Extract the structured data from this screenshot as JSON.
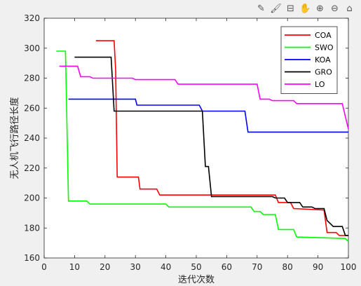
{
  "toolbar": {
    "icons": [
      "brush-export-icon",
      "data-tip-icon",
      "data-cursor-icon",
      "pan-hand-icon",
      "zoom-in-icon",
      "zoom-out-icon",
      "home-icon"
    ]
  },
  "chart_data": {
    "type": "line",
    "title": "",
    "xlabel": "迭代次数",
    "ylabel": "无人机飞行路径长度",
    "xlim": [
      0,
      100
    ],
    "ylim": [
      160,
      320
    ],
    "xticks": [
      0,
      10,
      20,
      30,
      40,
      50,
      60,
      70,
      80,
      90,
      100
    ],
    "yticks": [
      160,
      180,
      200,
      220,
      240,
      260,
      280,
      300,
      320
    ],
    "grid": false,
    "legend_position": "top-right",
    "series": [
      {
        "name": "COA",
        "color": "#ff0000",
        "points": [
          [
            17,
            305
          ],
          [
            23,
            305
          ],
          [
            23.5,
            285
          ],
          [
            24,
            214
          ],
          [
            31,
            214
          ],
          [
            31.5,
            206
          ],
          [
            37,
            206
          ],
          [
            38,
            202
          ],
          [
            76,
            202
          ],
          [
            77,
            197
          ],
          [
            81,
            197
          ],
          [
            82,
            193
          ],
          [
            92,
            192
          ],
          [
            93,
            177
          ],
          [
            96,
            177
          ],
          [
            97,
            175
          ],
          [
            100,
            175
          ]
        ]
      },
      {
        "name": "SWO",
        "color": "#00ff00",
        "points": [
          [
            4,
            298
          ],
          [
            7,
            298
          ],
          [
            8,
            198
          ],
          [
            14,
            198
          ],
          [
            15,
            196
          ],
          [
            40,
            196
          ],
          [
            41,
            194
          ],
          [
            68,
            194
          ],
          [
            69,
            191
          ],
          [
            71,
            191
          ],
          [
            72,
            189
          ],
          [
            76,
            189
          ],
          [
            77,
            179
          ],
          [
            82,
            179
          ],
          [
            83,
            174
          ],
          [
            99,
            173
          ],
          [
            100,
            171
          ]
        ]
      },
      {
        "name": "KOA",
        "color": "#0000ff",
        "points": [
          [
            8,
            266
          ],
          [
            30,
            266
          ],
          [
            30.5,
            262
          ],
          [
            51,
            262
          ],
          [
            52,
            258
          ],
          [
            66,
            258
          ],
          [
            67,
            244
          ],
          [
            100,
            244
          ]
        ]
      },
      {
        "name": "GRO",
        "color": "#000000",
        "points": [
          [
            10,
            294
          ],
          [
            22,
            294
          ],
          [
            23,
            258
          ],
          [
            52,
            258
          ],
          [
            53,
            221
          ],
          [
            54,
            221
          ],
          [
            55,
            201
          ],
          [
            75,
            201
          ],
          [
            76,
            200
          ],
          [
            79,
            200
          ],
          [
            80,
            197
          ],
          [
            84,
            197
          ],
          [
            85,
            194
          ],
          [
            88,
            194
          ],
          [
            89,
            193
          ],
          [
            92,
            193
          ],
          [
            93,
            185
          ],
          [
            94,
            183
          ],
          [
            95,
            181
          ],
          [
            98,
            181
          ],
          [
            99,
            175
          ],
          [
            100,
            175
          ]
        ]
      },
      {
        "name": "LO",
        "color": "#ff00ff",
        "points": [
          [
            5,
            288
          ],
          [
            11,
            288
          ],
          [
            12,
            281
          ],
          [
            15,
            281
          ],
          [
            16,
            280
          ],
          [
            29,
            280
          ],
          [
            30,
            279
          ],
          [
            43,
            279
          ],
          [
            44,
            276
          ],
          [
            70,
            276
          ],
          [
            71,
            266
          ],
          [
            74,
            266
          ],
          [
            75,
            265
          ],
          [
            82,
            265
          ],
          [
            83,
            263
          ],
          [
            98,
            263
          ],
          [
            100,
            246
          ]
        ]
      }
    ]
  }
}
